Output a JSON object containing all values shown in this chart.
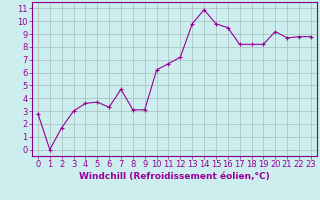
{
  "x": [
    0,
    1,
    2,
    3,
    4,
    5,
    6,
    7,
    8,
    9,
    10,
    11,
    12,
    13,
    14,
    15,
    16,
    17,
    18,
    19,
    20,
    21,
    22,
    23
  ],
  "y": [
    2.8,
    0.0,
    1.7,
    3.0,
    3.6,
    3.7,
    3.3,
    4.7,
    3.1,
    3.1,
    6.2,
    6.7,
    7.2,
    9.8,
    10.9,
    9.8,
    9.5,
    8.2,
    8.2,
    8.2,
    9.2,
    8.7,
    8.8,
    8.8
  ],
  "line_color": "#990099",
  "marker": "+",
  "marker_size": 3,
  "background_color": "#cceeee",
  "grid_color": "#aabbbb",
  "xlabel": "Windchill (Refroidissement éolien,°C)",
  "xlabel_fontsize": 6.5,
  "tick_color": "#990099",
  "tick_fontsize": 6.0,
  "xlim": [
    -0.5,
    23.5
  ],
  "ylim": [
    -0.5,
    11.5
  ],
  "yticks": [
    0,
    1,
    2,
    3,
    4,
    5,
    6,
    7,
    8,
    9,
    10,
    11
  ],
  "xticks": [
    0,
    1,
    2,
    3,
    4,
    5,
    6,
    7,
    8,
    9,
    10,
    11,
    12,
    13,
    14,
    15,
    16,
    17,
    18,
    19,
    20,
    21,
    22,
    23
  ],
  "spine_color": "#880088",
  "linewidth": 0.8,
  "markeredgewidth": 0.8
}
